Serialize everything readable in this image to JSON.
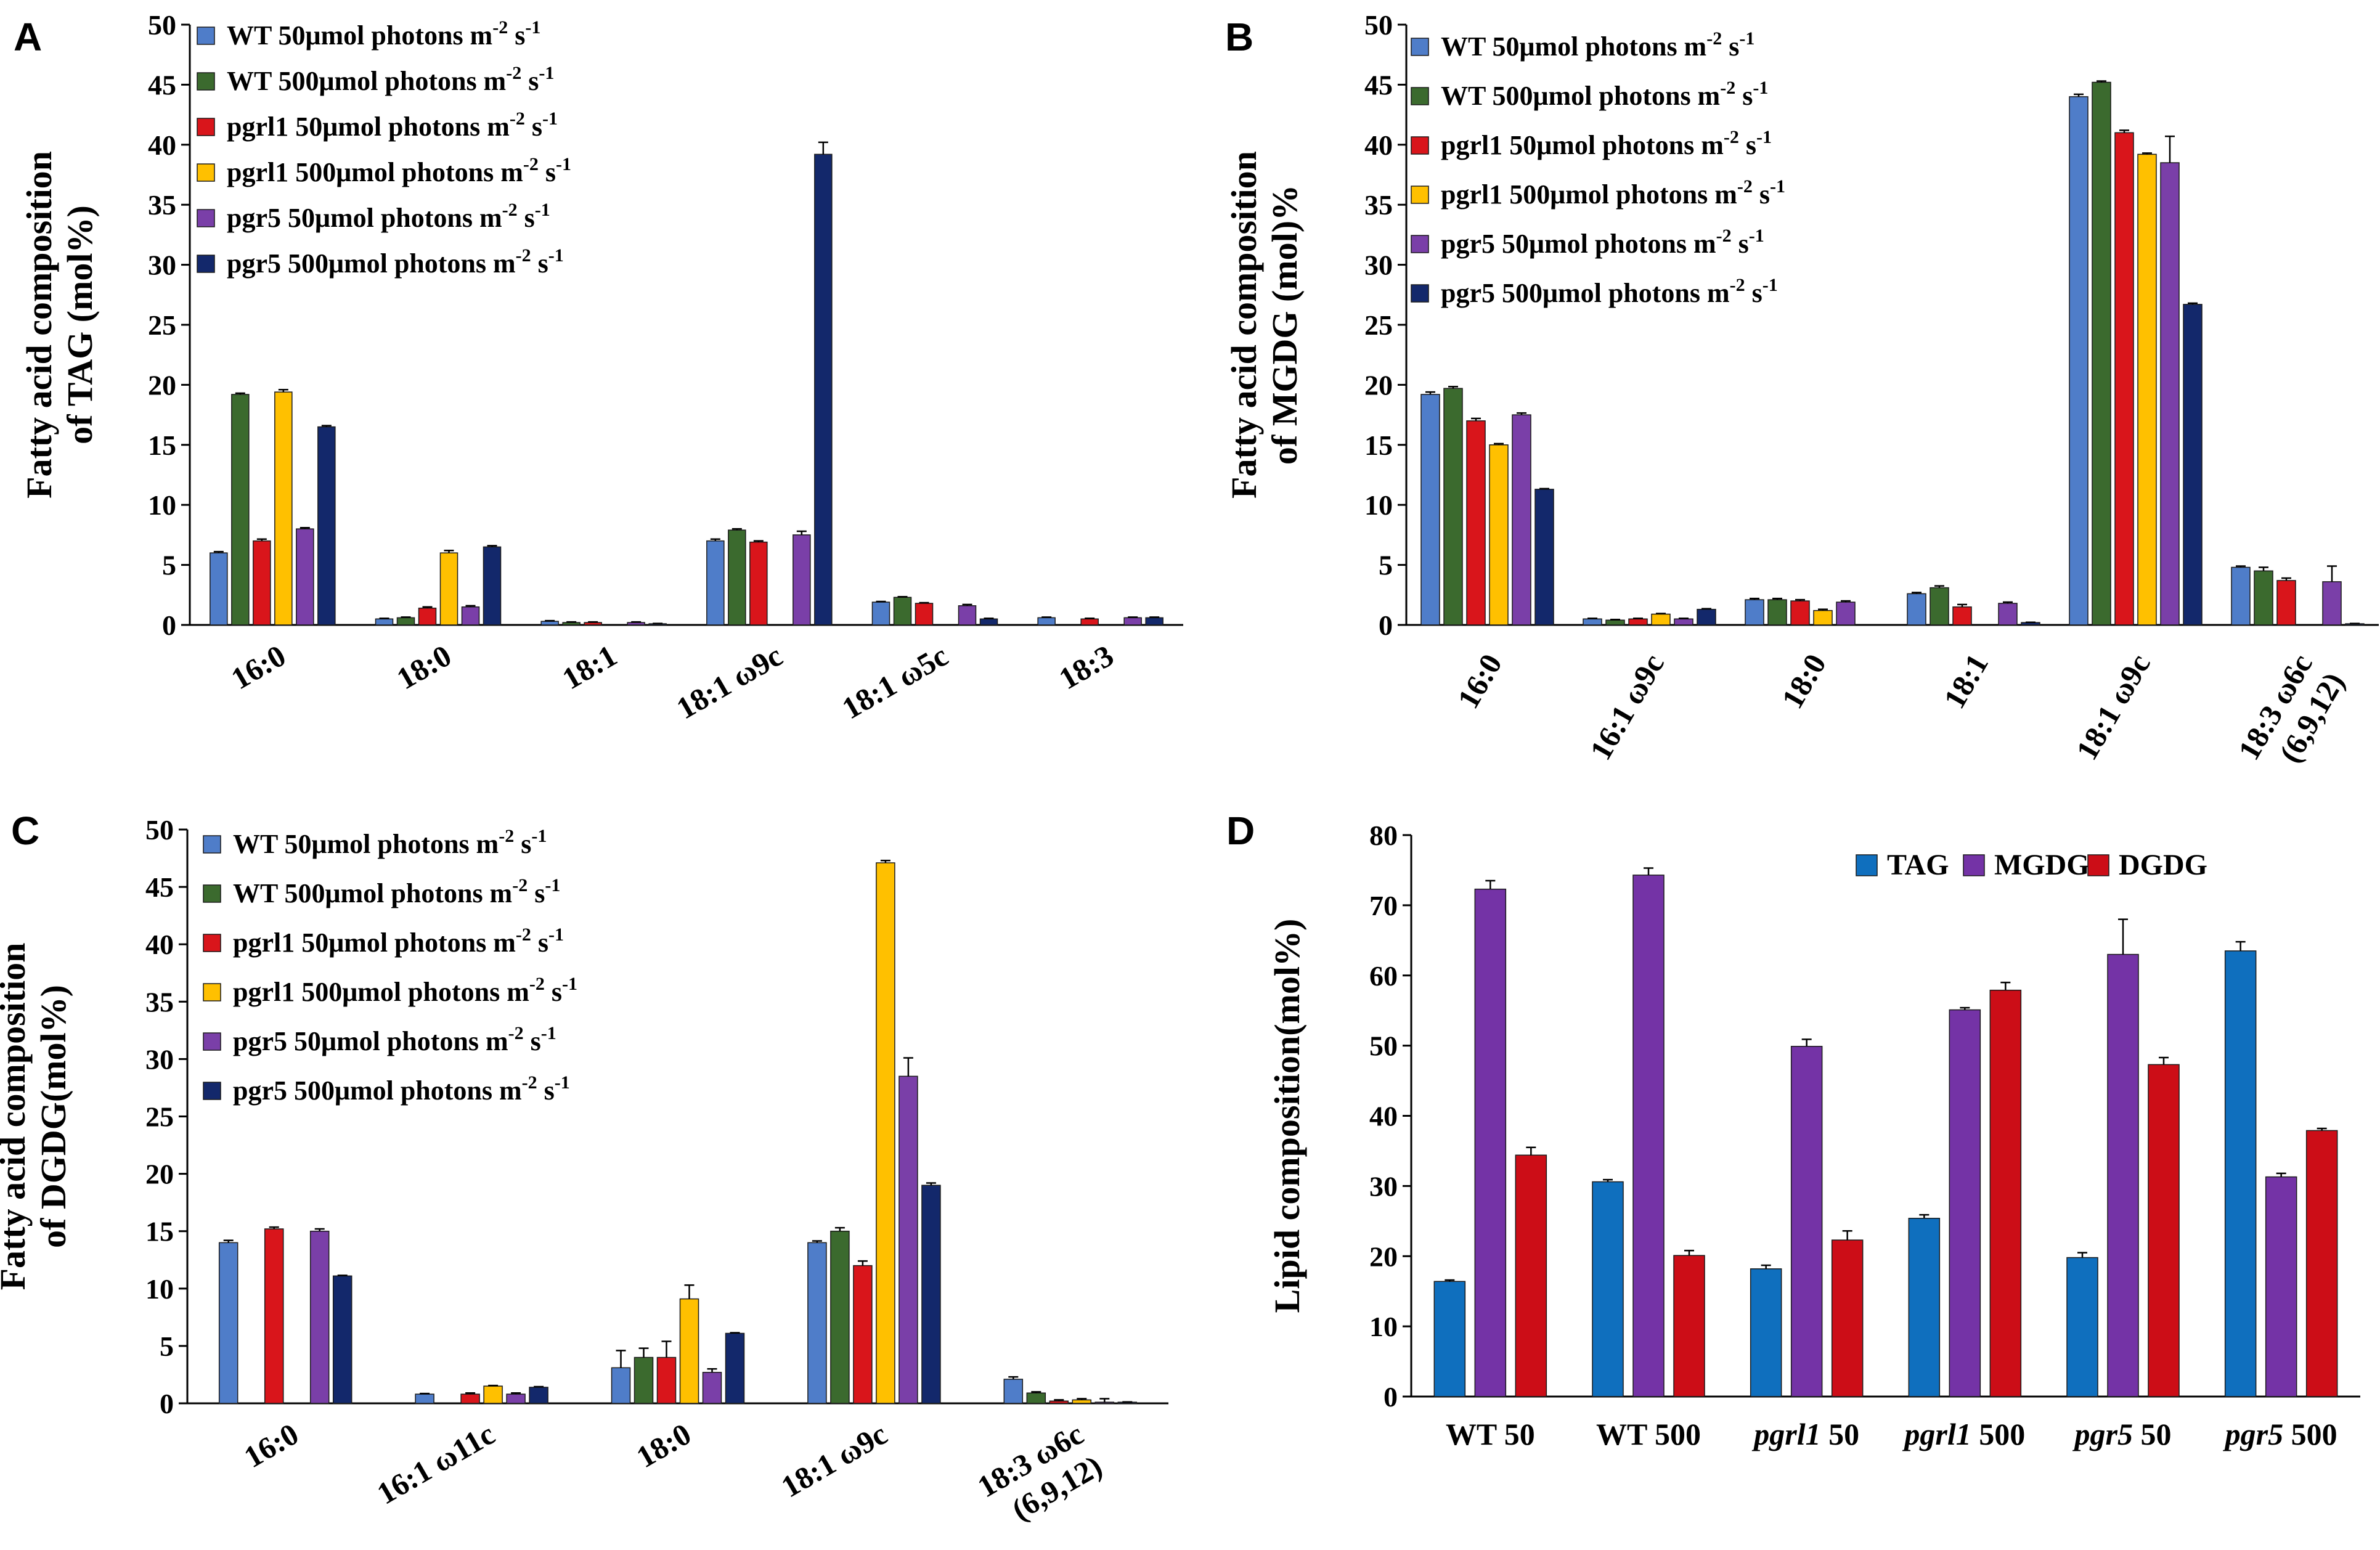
{
  "colors": {
    "wt50": "#4f7dc9",
    "wt500": "#3b6a2e",
    "pgrl1_50": "#d9151b",
    "pgrl1_500": "#ffc000",
    "pgr5_50": "#7a3fa8",
    "pgr5_500": "#13286b",
    "tag": "#0f6fbe",
    "mgdg": "#7433a6",
    "dgdg": "#cc0d17"
  },
  "legend_entries": [
    {
      "key": "wt50",
      "strain": "WT",
      "intensity": "50",
      "unit": "μmol photons m",
      "exp1": "-2",
      "mid": " s",
      "exp2": "-1"
    },
    {
      "key": "wt500",
      "strain": "WT",
      "intensity": "500",
      "unit": "μmol photons m",
      "exp1": "-2",
      "mid": " s",
      "exp2": "-1"
    },
    {
      "key": "pgrl1_50",
      "strain": "pgrl1",
      "intensity": "50",
      "unit": "μmol photons m",
      "exp1": "-2",
      "mid": " s",
      "exp2": "-1"
    },
    {
      "key": "pgrl1_500",
      "strain": "pgrl1",
      "intensity": "500",
      "unit": "μmol photons m",
      "exp1": "-2",
      "mid": " s",
      "exp2": "-1"
    },
    {
      "key": "pgr5_50",
      "strain": "pgr5",
      "intensity": "50",
      "unit": "μmol photons m",
      "exp1": "-2",
      "mid": " s",
      "exp2": "-1"
    },
    {
      "key": "pgr5_500",
      "strain": "pgr5",
      "intensity": "500",
      "unit": "μmol photons m",
      "exp1": "-2",
      "mid": " s",
      "exp2": "-1"
    }
  ],
  "chart_data": [
    {
      "panel": "A",
      "type": "bar",
      "ylabel": [
        "Fatty acid composition",
        "of TAG (mol%)"
      ],
      "ylim": [
        0,
        50
      ],
      "yticks": [
        0,
        5,
        10,
        15,
        20,
        25,
        30,
        35,
        40,
        45,
        50
      ],
      "categories": [
        [
          "16:0"
        ],
        [
          "18:0"
        ],
        [
          "18:1"
        ],
        [
          "18:1 ω9c"
        ],
        [
          "18:1 ω5c"
        ],
        [
          "18:3"
        ]
      ],
      "series": [
        {
          "key": "wt50",
          "values": [
            6.0,
            0.5,
            0.3,
            7.0,
            1.9,
            0.6
          ],
          "errors": [
            0.1,
            0.05,
            0.05,
            0.15,
            0.05,
            0.05
          ]
        },
        {
          "key": "wt500",
          "values": [
            19.2,
            0.6,
            0.2,
            7.9,
            2.3,
            0
          ],
          "errors": [
            0.1,
            0.05,
            0.05,
            0.1,
            0.05,
            0
          ]
        },
        {
          "key": "pgrl1_50",
          "values": [
            7.0,
            1.4,
            0.2,
            6.9,
            1.8,
            0.5
          ],
          "errors": [
            0.15,
            0.1,
            0.05,
            0.1,
            0.05,
            0.05
          ]
        },
        {
          "key": "pgrl1_500",
          "values": [
            19.4,
            6.0,
            0,
            0,
            0,
            0
          ],
          "errors": [
            0.2,
            0.2,
            0,
            0,
            0,
            0
          ]
        },
        {
          "key": "pgr5_50",
          "values": [
            8.0,
            1.5,
            0.2,
            7.5,
            1.6,
            0.6
          ],
          "errors": [
            0.1,
            0.1,
            0.05,
            0.3,
            0.1,
            0.05
          ]
        },
        {
          "key": "pgr5_500",
          "values": [
            16.5,
            6.5,
            0.1,
            39.2,
            0.5,
            0.6
          ],
          "errors": [
            0.1,
            0.1,
            0.02,
            1.0,
            0.05,
            0.05
          ]
        }
      ]
    },
    {
      "panel": "B",
      "type": "bar",
      "ylabel": [
        "Fatty acid composition",
        "of MGDG (mol)%"
      ],
      "ylim": [
        0,
        50
      ],
      "yticks": [
        0,
        5,
        10,
        15,
        20,
        25,
        30,
        35,
        40,
        45,
        50
      ],
      "categories": [
        [
          "16:0"
        ],
        [
          "16:1 ω9c"
        ],
        [
          "18:0"
        ],
        [
          "18:1"
        ],
        [
          "18:1 ω9c"
        ],
        [
          "18:3 ω6c",
          "(6,9,12)"
        ]
      ],
      "series": [
        {
          "key": "wt50",
          "values": [
            19.2,
            0.5,
            2.1,
            2.6,
            44.0,
            4.8
          ],
          "errors": [
            0.2,
            0.05,
            0.1,
            0.1,
            0.2,
            0.1
          ]
        },
        {
          "key": "wt500",
          "values": [
            19.7,
            0.4,
            2.1,
            3.1,
            45.2,
            4.5
          ],
          "errors": [
            0.15,
            0.05,
            0.1,
            0.15,
            0.1,
            0.3
          ]
        },
        {
          "key": "pgrl1_50",
          "values": [
            17.0,
            0.5,
            2.0,
            1.5,
            41.0,
            3.7
          ],
          "errors": [
            0.2,
            0.05,
            0.1,
            0.2,
            0.2,
            0.2
          ]
        },
        {
          "key": "pgrl1_500",
          "values": [
            15.0,
            0.9,
            1.2,
            0,
            39.2,
            0
          ],
          "errors": [
            0.1,
            0.05,
            0.1,
            0,
            0.1,
            0
          ]
        },
        {
          "key": "pgr5_50",
          "values": [
            17.5,
            0.5,
            1.9,
            1.8,
            38.5,
            3.6
          ],
          "errors": [
            0.15,
            0.05,
            0.1,
            0.1,
            2.2,
            1.3
          ]
        },
        {
          "key": "pgr5_500",
          "values": [
            11.3,
            1.3,
            0,
            0.2,
            26.7,
            0.1
          ],
          "errors": [
            0.05,
            0.05,
            0,
            0.02,
            0.1,
            0.02
          ]
        }
      ]
    },
    {
      "panel": "C",
      "type": "bar",
      "ylabel": [
        "Fatty acid composition",
        "of DGDG(mol%)"
      ],
      "ylim": [
        0,
        50
      ],
      "yticks": [
        0,
        5,
        10,
        15,
        20,
        25,
        30,
        35,
        40,
        45,
        50
      ],
      "categories": [
        [
          "16:0"
        ],
        [
          "16:1 ω11c"
        ],
        [
          "18:0"
        ],
        [
          "18:1 ω9c"
        ],
        [
          "18:3 ω6c",
          "(6,9,12)"
        ]
      ],
      "series": [
        {
          "key": "wt50",
          "values": [
            14.0,
            0.8,
            3.1,
            14.0,
            2.1
          ],
          "errors": [
            0.2,
            0.05,
            1.5,
            0.15,
            0.2
          ]
        },
        {
          "key": "wt500",
          "values": [
            0,
            0,
            4.0,
            15.0,
            0.9
          ],
          "errors": [
            0,
            0,
            0.8,
            0.3,
            0.1
          ]
        },
        {
          "key": "pgrl1_50",
          "values": [
            15.2,
            0.8,
            4.0,
            12.0,
            0.2
          ],
          "errors": [
            0.15,
            0.1,
            1.4,
            0.4,
            0.1
          ]
        },
        {
          "key": "pgrl1_500",
          "values": [
            0,
            1.5,
            9.1,
            47.1,
            0.3
          ],
          "errors": [
            0,
            0.05,
            1.2,
            0.2,
            0.1
          ]
        },
        {
          "key": "pgr5_50",
          "values": [
            15.0,
            0.8,
            2.7,
            28.5,
            0.1
          ],
          "errors": [
            0.2,
            0.1,
            0.3,
            1.6,
            0.3
          ]
        },
        {
          "key": "pgr5_500",
          "values": [
            11.1,
            1.4,
            6.1,
            19.0,
            0.1
          ],
          "errors": [
            0.05,
            0.05,
            0.05,
            0.2,
            0.02
          ]
        }
      ]
    },
    {
      "panel": "D",
      "type": "bar",
      "ylabel": [
        "Lipid composition(mol%)"
      ],
      "ylim": [
        0,
        80
      ],
      "yticks": [
        0,
        10,
        20,
        30,
        40,
        50,
        60,
        70,
        80
      ],
      "categories": [
        {
          "strain": "WT",
          "italic": false,
          "level": "50"
        },
        {
          "strain": "WT",
          "italic": false,
          "level": "500"
        },
        {
          "strain": "pgrl1",
          "italic": true,
          "level": "50"
        },
        {
          "strain": "pgrl1",
          "italic": true,
          "level": "500"
        },
        {
          "strain": "pgr5",
          "italic": true,
          "level": "50"
        },
        {
          "strain": "pgr5",
          "italic": true,
          "level": "500"
        }
      ],
      "legend": [
        {
          "key": "tag",
          "label": "TAG"
        },
        {
          "key": "mgdg",
          "label": "MGDG"
        },
        {
          "key": "dgdg",
          "label": "DGDG"
        }
      ],
      "series": [
        {
          "key": "tag",
          "values": [
            16.4,
            30.6,
            18.2,
            25.4,
            19.8,
            63.5
          ],
          "errors": [
            0.2,
            0.3,
            0.5,
            0.5,
            0.7,
            1.3
          ]
        },
        {
          "key": "mgdg",
          "values": [
            72.3,
            74.3,
            49.9,
            55.1,
            63.0,
            31.3
          ],
          "errors": [
            1.2,
            1.0,
            1.0,
            0.3,
            5.0,
            0.5
          ]
        },
        {
          "key": "dgdg",
          "values": [
            34.4,
            20.1,
            22.3,
            57.9,
            47.3,
            37.9
          ],
          "errors": [
            1.1,
            0.7,
            1.3,
            1.1,
            1.0,
            0.3
          ]
        }
      ]
    }
  ]
}
